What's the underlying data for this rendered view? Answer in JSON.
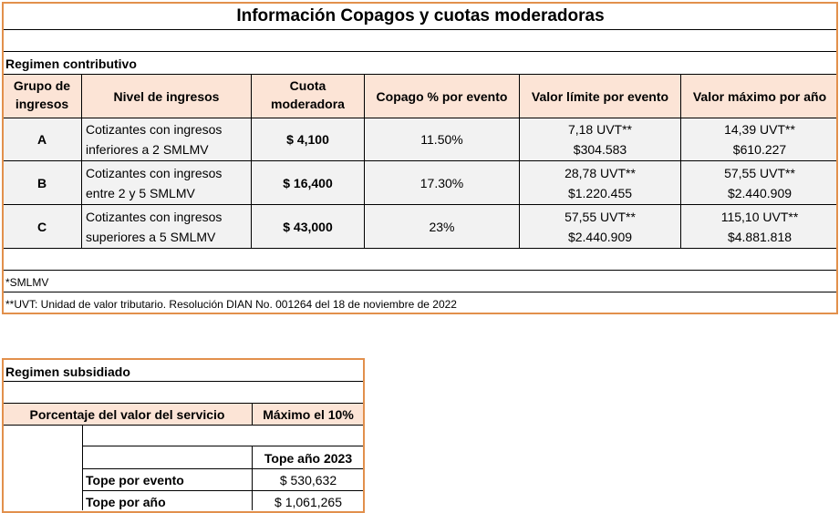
{
  "title": "Información Copagos y cuotas moderadoras",
  "contributivo": {
    "section_label": "Regimen contributivo",
    "headers": {
      "grupo_l1": "Grupo de",
      "grupo_l2": "ingresos",
      "nivel": "Nivel de ingresos",
      "cuota_l1": "Cuota",
      "cuota_l2": "moderadora",
      "copago": "Copago % por evento",
      "limite": "Valor límite por evento",
      "maximo": "Valor máximo por año"
    },
    "rows": [
      {
        "grupo": "A",
        "nivel_l1": "Cotizantes con ingresos",
        "nivel_l2": "inferiores a 2 SMLMV",
        "cuota": "$ 4,100",
        "copago": "11.50%",
        "limite_l1": "7,18 UVT**",
        "limite_l2": "$304.583",
        "maximo_l1": "14,39 UVT**",
        "maximo_l2": "$610.227"
      },
      {
        "grupo": "B",
        "nivel_l1": "Cotizantes con ingresos",
        "nivel_l2": "entre 2 y 5 SMLMV",
        "cuota": "$ 16,400",
        "copago": "17.30%",
        "limite_l1": "28,78 UVT**",
        "limite_l2": "$1.220.455",
        "maximo_l1": "57,55 UVT**",
        "maximo_l2": "$2.440.909"
      },
      {
        "grupo": "C",
        "nivel_l1": "Cotizantes con ingresos",
        "nivel_l2": "superiores a 5 SMLMV",
        "cuota": "$ 43,000",
        "copago": "23%",
        "limite_l1": "57,55 UVT**",
        "limite_l2": "$2.440.909",
        "maximo_l1": "115,10 UVT**",
        "maximo_l2": "$4.881.818"
      }
    ],
    "note1": "*SMLMV",
    "note2": "**UVT: Unidad de valor tributario. Resolución DIAN No. 001264 del 18 de noviembre de 2022"
  },
  "subsidiado": {
    "section_label": "Regimen subsidiado",
    "porcentaje_label": "Porcentaje del valor del servicio",
    "porcentaje_value": "Máximo el 10%",
    "tope_header": "Tope año 2023",
    "tope_evento_label": "Tope por evento",
    "tope_evento_value": "$ 530,632",
    "tope_anio_label": "Tope por año",
    "tope_anio_value": "$ 1,061,265"
  }
}
